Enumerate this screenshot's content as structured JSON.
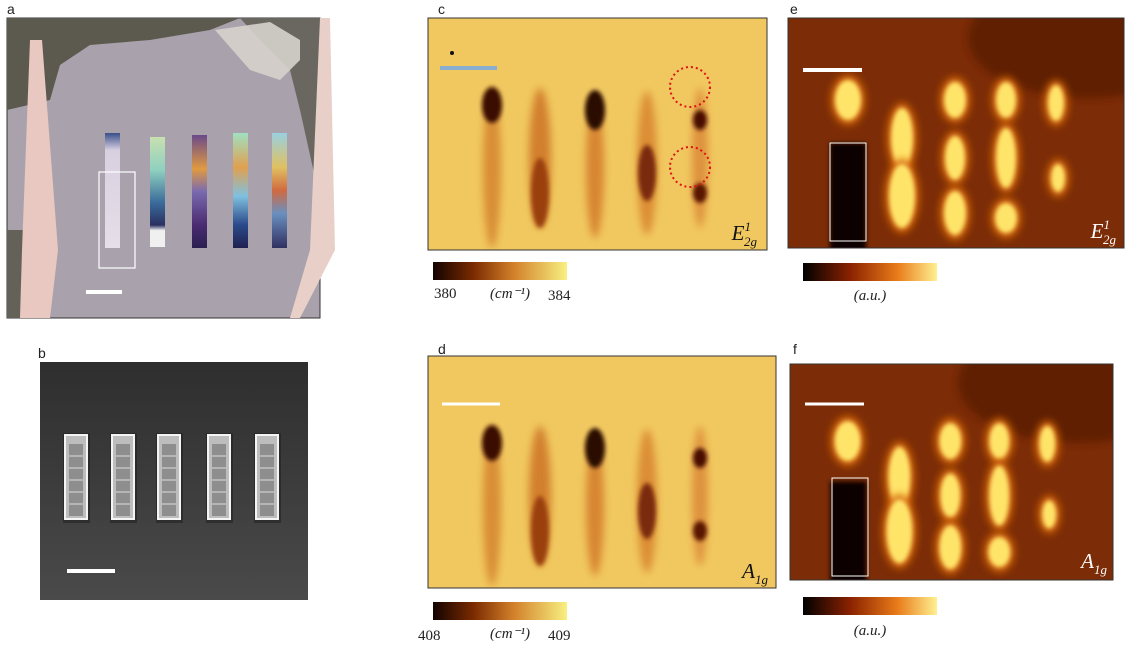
{
  "panels": [
    {
      "label": "a"
    },
    {
      "label": "b"
    },
    {
      "label": "c",
      "map_label": {
        "symbol": "E",
        "sup": "1",
        "sub": "2g"
      },
      "colorbar": {
        "min": "380",
        "unit": "(cm⁻¹)",
        "max": "384"
      }
    },
    {
      "label": "d",
      "map_label": {
        "symbol": "A",
        "sub": "1g"
      },
      "colorbar": {
        "min": "408",
        "unit": "(cm⁻¹)",
        "max": "409"
      }
    },
    {
      "label": "e",
      "map_label": {
        "symbol": "E",
        "sup": "1",
        "sub": "2g"
      },
      "colorbar": {
        "unit": "(a.u.)"
      }
    },
    {
      "label": "f",
      "map_label": {
        "symbol": "A",
        "sub": "1g"
      },
      "colorbar": {
        "unit": "(a.u.)"
      }
    }
  ]
}
